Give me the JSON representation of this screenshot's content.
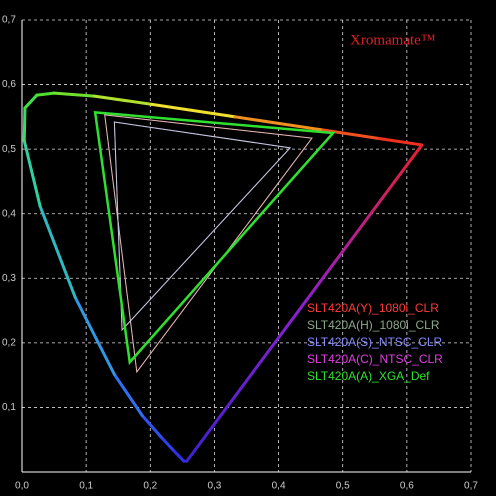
{
  "chart_data": {
    "type": "line",
    "title": "Xromamate™",
    "title_color": "#e0202a",
    "xlim": [
      0,
      0.7
    ],
    "ylim": [
      0,
      0.7
    ],
    "xticks": [
      {
        "value": 0,
        "label": "0,0"
      },
      {
        "value": 0.1,
        "label": "0,1"
      },
      {
        "value": 0.2,
        "label": "0,2"
      },
      {
        "value": 0.3,
        "label": "0,3"
      },
      {
        "value": 0.4,
        "label": "0,4"
      },
      {
        "value": 0.5,
        "label": "0,5"
      },
      {
        "value": 0.6,
        "label": "0,6"
      },
      {
        "value": 0.7,
        "label": "0,7"
      }
    ],
    "yticks": [
      {
        "value": 0.1,
        "label": "0,1"
      },
      {
        "value": 0.2,
        "label": "0,2"
      },
      {
        "value": 0.3,
        "label": "0,3"
      },
      {
        "value": 0.4,
        "label": "0,4"
      },
      {
        "value": 0.5,
        "label": "0,5"
      },
      {
        "value": 0.6,
        "label": "0,6"
      },
      {
        "value": 0.7,
        "label": "0,7"
      }
    ],
    "grid": true,
    "locus": {
      "x": [
        0.2568,
        0.2522,
        0.2347,
        0.2161,
        0.1877,
        0.1441,
        0.0828,
        0.0282,
        0.0035,
        0.0046,
        0.0231,
        0.0501,
        0.1127,
        0.2026,
        0.3315,
        0.4692,
        0.5565,
        0.6234
      ],
      "values": [
        0.0166,
        0.0169,
        0.035,
        0.0549,
        0.0871,
        0.151,
        0.2708,
        0.4117,
        0.5131,
        0.5638,
        0.5837,
        0.5868,
        0.5821,
        0.5694,
        0.5501,
        0.5296,
        0.5165,
        0.5065
      ],
      "colors": [
        "#4020d0",
        "#3030e0",
        "#3040e8",
        "#3050f0",
        "#3070f0",
        "#3098e0",
        "#30b8c0",
        "#30d0a0",
        "#30e060",
        "#40e040",
        "#50e030",
        "#70e030",
        "#b0e030",
        "#f0e030",
        "#f09020",
        "#f05020",
        "#f03020",
        "#e82030"
      ]
    },
    "series": [
      {
        "name": "SLT420A(Y)_1080i_CLR",
        "color": "#ff3a3a",
        "x": [
          0.129,
          0.452,
          0.179
        ],
        "values": [
          0.553,
          0.517,
          0.155
        ]
      },
      {
        "name": "SLT420A(H)_1080i_CLR",
        "color": "#8aa88a",
        "x": [
          0.129,
          0.452,
          0.179
        ],
        "values": [
          0.553,
          0.517,
          0.155
        ]
      },
      {
        "name": "SLT420A(S)_NTSC_CLR",
        "color": "#8a8aff",
        "x": [
          0.144,
          0.418,
          0.156
        ],
        "values": [
          0.542,
          0.502,
          0.22
        ]
      },
      {
        "name": "SLT420A(C)_NTSC_CLR",
        "color": "#e040e0",
        "x": [
          0.144,
          0.418,
          0.156
        ],
        "values": [
          0.542,
          0.502,
          0.22
        ]
      },
      {
        "name": "SLT420A(A)_XGA_Def",
        "color": "#30e030",
        "x": [
          0.114,
          0.485,
          0.168
        ],
        "values": [
          0.557,
          0.525,
          0.17
        ]
      }
    ]
  }
}
